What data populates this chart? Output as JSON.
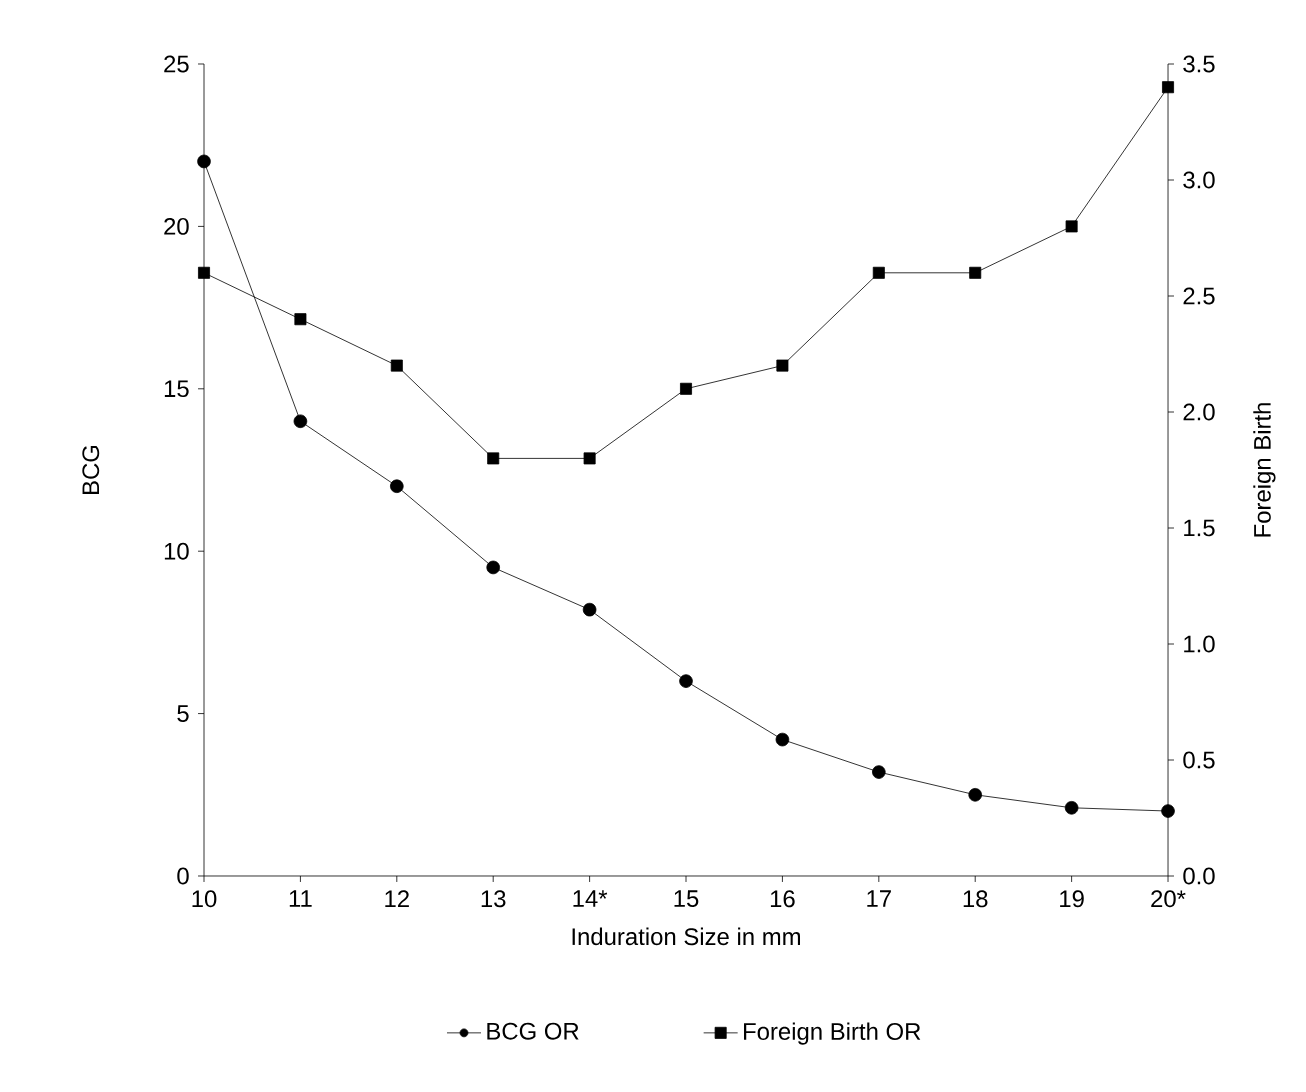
{
  "chart_data": {
    "type": "line",
    "xlabel": "Induration Size in mm",
    "ylabel": "BCG",
    "y2label": "Foreign Birth",
    "categories": [
      "10",
      "11",
      "12",
      "13",
      "14*",
      "15",
      "16",
      "17",
      "18",
      "19",
      "20*"
    ],
    "ylim": [
      0,
      25
    ],
    "yticks": [
      0,
      5,
      10,
      15,
      20,
      25
    ],
    "y2lim": [
      0,
      3.5
    ],
    "y2ticks": [
      {
        "value": 0,
        "label": "0.0"
      },
      {
        "value": 0.5,
        "label": "0.5"
      },
      {
        "value": 1,
        "label": "1.0"
      },
      {
        "value": 1.5,
        "label": "1.5"
      },
      {
        "value": 2,
        "label": "2.0"
      },
      {
        "value": 2.5,
        "label": "2.5"
      },
      {
        "value": 3,
        "label": "3.0"
      },
      {
        "value": 3.5,
        "label": "3.5"
      }
    ],
    "series": [
      {
        "name": "BCG OR",
        "color": "#000000",
        "marker": "circle",
        "values": [
          22,
          14,
          12,
          9.5,
          8.2,
          6,
          4.2,
          3.2,
          2.5,
          2.1,
          2.0
        ]
      },
      {
        "name": "Foreign Birth OR",
        "color": "#000000",
        "marker": "square",
        "axis": "y2",
        "values": [
          2.6,
          2.4,
          2.2,
          1.8,
          1.8,
          2.1,
          2.2,
          2.6,
          2.6,
          2.8,
          3.4
        ]
      }
    ],
    "legend": "bottom",
    "grid": false
  }
}
